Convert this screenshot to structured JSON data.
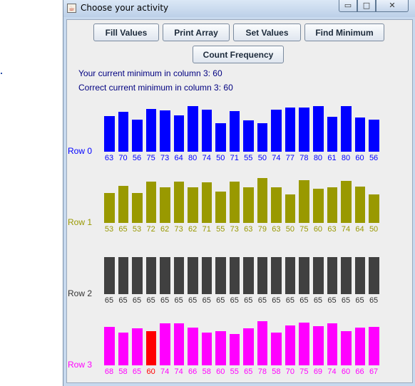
{
  "window": {
    "title": "Choose your activity",
    "controls": {
      "minimize": "▭",
      "maximize": "□",
      "close": "✕"
    }
  },
  "buttons": {
    "fill": "Fill Values",
    "print": "Print Array",
    "set": "Set Values",
    "find": "Find Minimum",
    "count": "Count Frequency"
  },
  "info": {
    "current_min": "Your current minimum in column 3: 60",
    "correct_min": "Correct current minimum in column 3: 60"
  },
  "chart_data": {
    "type": "bar",
    "rows": [
      {
        "name": "Row 0",
        "color": "#0000ff",
        "values": [
          63,
          70,
          56,
          75,
          73,
          64,
          80,
          74,
          50,
          71,
          55,
          50,
          74,
          77,
          78,
          80,
          61,
          80,
          60,
          56
        ]
      },
      {
        "name": "Row 1",
        "color": "#999900",
        "values": [
          53,
          65,
          53,
          72,
          62,
          73,
          62,
          71,
          55,
          73,
          63,
          79,
          63,
          50,
          75,
          60,
          63,
          74,
          64,
          50
        ]
      },
      {
        "name": "Row 2",
        "color": "#404040",
        "values": [
          65,
          65,
          65,
          65,
          65,
          65,
          65,
          65,
          65,
          65,
          65,
          65,
          65,
          65,
          65,
          65,
          65,
          65,
          65,
          65
        ]
      },
      {
        "name": "Row 3",
        "color": "#ff00ff",
        "values": [
          68,
          58,
          65,
          60,
          74,
          74,
          66,
          58,
          60,
          55,
          65,
          78,
          58,
          70,
          75,
          69,
          74,
          60,
          66,
          67
        ],
        "highlight_index": 3,
        "highlight_color": "#ff0000"
      }
    ]
  }
}
